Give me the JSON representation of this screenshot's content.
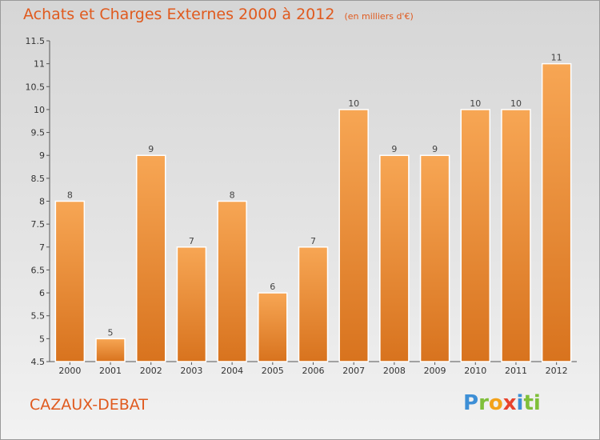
{
  "header": {
    "title": "Achats et Charges Externes 2000 à 2012",
    "subtitle": "(en milliers d'€)"
  },
  "commune": "CAZAUX-DEBAT",
  "logo": {
    "letters": [
      "P",
      "r",
      "o",
      "x",
      "i",
      "ti"
    ]
  },
  "colors": {
    "bar_top": "#f7a654",
    "bar_bottom": "#d8731e",
    "title": "#e05a1e"
  },
  "chart_data": {
    "type": "bar",
    "title": "Achats et Charges Externes 2000 à 2012",
    "subtitle": "(en milliers d'€)",
    "categories": [
      "2000",
      "2001",
      "2002",
      "2003",
      "2004",
      "2005",
      "2006",
      "2007",
      "2008",
      "2009",
      "2010",
      "2011",
      "2012"
    ],
    "values": [
      8,
      5,
      9,
      7,
      8,
      6,
      7,
      10,
      9,
      9,
      10,
      10,
      11
    ],
    "ylim": [
      4.5,
      11.5
    ],
    "yticks": [
      "4.5",
      "5",
      "5.5",
      "6",
      "6.5",
      "7",
      "7.5",
      "8",
      "8.5",
      "9",
      "9.5",
      "10",
      "10.5",
      "11",
      "11.5"
    ],
    "grid": false,
    "legend": "none"
  }
}
